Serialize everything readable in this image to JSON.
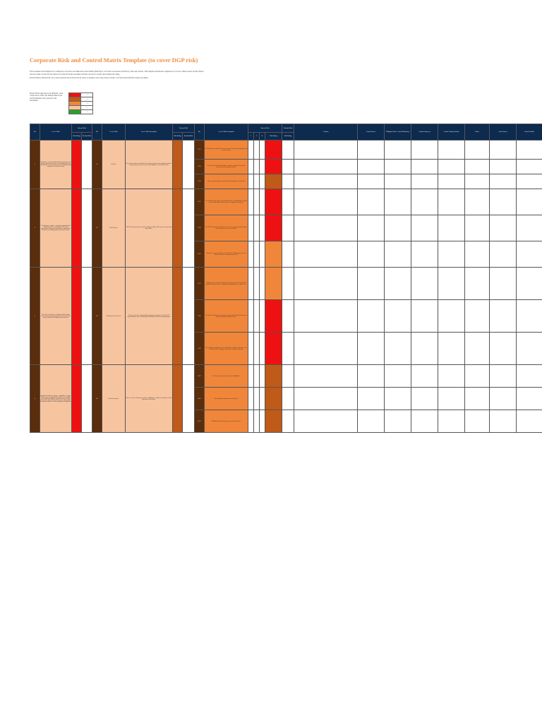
{
  "doc": {
    "title": "Corporate Risk and Control Matrix Template (to cover DGP risk)",
    "intro_1": "This document is the template for creating the Corporate Level Risk and Control Matrix (RACM) to cover Data Governance and Privacy risks and controls. This template includes the completed set of Level 1 Risk/Control and the offered sub-level risks, it treats the sub-risk level as affected in this document and then can used to produce the residual risk rating.",
    "intro_2": "Fill the fields in this RACM cover current and the steps followed in its whole to identify Level 4 Key Steps to them to be found in the DGP Procedures document.",
    "legend_text": "Please fill the right shows the different colour codes used to reflect the inherent Risk Level and the Residual with a green for the assessment."
  },
  "legend": [
    {
      "color": "#ee1111",
      "label": "5"
    },
    {
      "color": "#c05a18",
      "label": "4"
    },
    {
      "color": "#f0863a",
      "label": "3"
    },
    {
      "color": "#f7c4a0",
      "label": "2"
    },
    {
      "color": "#2ca02c",
      "label": "1"
    }
  ],
  "headers": {
    "ref": "Ref",
    "level1_risk": "Level 1 Risk",
    "inherent_risk": "Inherent Risk",
    "risk_rating": "Risk Rating",
    "residual_risk": "Residual Risk",
    "level2_risk": "Level 2 Risk",
    "level2_risk_description": "Level 2 Risk Description",
    "level3_risk_description": "Level 3 Risk Description",
    "col_i": "I",
    "col_l": "L",
    "col_r": "R",
    "control": "Controls",
    "control_owner": "Control Owner",
    "monitoring": "Mitigation Plan / Control Monitoring",
    "control_frequency": "Control Frequency",
    "control_testing": "Control Testing Schedule",
    "status": "Status",
    "action_owner": "Action Owner",
    "action_deadline": "Action Deadline"
  },
  "rows": [
    {
      "l1": "1",
      "l1_text": "Inadequate / poorly defined data governance and privacy frameworks; lack of ownership for data, information assets and privacy risks handling and compliance (control of data).",
      "l2": "1.1",
      "l2_name": "Policies",
      "l2_text": "Do not have Privacy and Data Governance policies and standards in place, or the policies are not reviewed and updated on a periodic basis.",
      "l3": [
        {
          "n": "1.1.1",
          "t": "No data Privacy and Data Governance policies defined and approved for the Group.",
          "c": "red"
        },
        {
          "n": "1.1.2",
          "t": "Data owners and stewards have not been assigned to key data domains and information assets.",
          "c": "red"
        },
        {
          "n": "1.1.3",
          "t": "Data retention policy is not defined and applied consistently.",
          "c": "dkor"
        }
      ]
    },
    {
      "l1": "2",
      "l1_text": "Insufficient, complex or unclear organisational capability and accountability of the data governance and privacy function to support the business in managing data and privacy risks.",
      "l2": "2.1",
      "l2_name": "Data Owners",
      "l2_text": "The DGP function does not have sufficient skills and resources to perform their duties.",
      "l3": [
        {
          "n": "2.1.1",
          "t": "The DGP function does not understand their responsibilities and do not have the skills and resources to support the business.",
          "c": "red"
        },
        {
          "n": "2.1.2",
          "t": "The DGP function has insufficient resources to perform their duties and report the necessary activities.",
          "c": "red"
        },
        {
          "n": "2.1.3",
          "t": "Resources to perform their role within the DGP function are not identified and no training is provided.",
          "c": "oran"
        }
      ]
    },
    {
      "l1": "3",
      "l1_text": "The level of effective colleagues DGP culture exists within the Group and it is not effectively being embedded throughout the business.",
      "l2": "3.1",
      "l2_name": "Training and Awareness",
      "l2_text": "There is a lack of understanding amongst colleagues of their DGP responsibilities due to inadequate training and awareness programmes.",
      "l3": [
        {
          "n": "3.1.1",
          "t": "Employees do not have sufficient knowledge of the Group DGP policies and procedures to apply them appropriately in their roles.",
          "c": "oran"
        },
        {
          "n": "3.1.2",
          "t": "No tailored training on data privacy is provided to staff with access to personal data within their role.",
          "c": "red"
        },
        {
          "n": "3.1.3",
          "t": "The training completion is not monitored or tracked and there is no follow-up for colleagues who fail to complete training.",
          "c": "red"
        }
      ]
    },
    {
      "l1": "4",
      "l1_text": "Insufficient data governance capability to enable DGP across the organisation; failure to establish and maintain adequate controls across the data lifecycle; risk of data quality issues, lack of data lineage and failure to meet regulatory obligations.",
      "l2": "4.1",
      "l2_name": "Data Governance",
      "l2_text": "There is a lack of data governance capability to enable the business to take data-driven decisions.",
      "l3": [
        {
          "n": "4.1.1",
          "t": "No data governance framework established.",
          "c": "dkor"
        },
        {
          "n": "4.1.2",
          "t": "Data quality standards are not defined.",
          "c": "dkor"
        },
        {
          "n": "4.1.3",
          "t": "Metadata and data lineage are not documented.",
          "c": "dkor"
        }
      ]
    }
  ]
}
